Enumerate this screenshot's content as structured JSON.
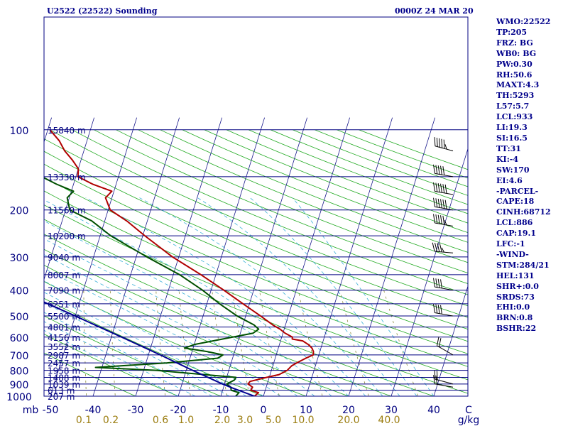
{
  "header": {
    "station_title": "U2522 (22522) Sounding",
    "time_title": "0000Z 24 MAR 20"
  },
  "indices": [
    "WMO:22522",
    "TP:205",
    "FRZ: BG",
    "WB0: BG",
    "PW:0.30",
    "RH:50.6",
    "MAXT:4.3",
    "TH:5293",
    "L57:5.7",
    "LCL:933",
    "LI:19.3",
    "SI:16.5",
    "TT:31",
    "KI:-4",
    "SW:170",
    "EI:4.6",
    "-PARCEL-",
    "CAPE:18",
    "CINH:68712",
    "LCL:886",
    "CAP:19.1",
    "LFC:-1",
    "-WIND-",
    "STM:284/21",
    "HEL:131",
    "SHR+:0.0",
    "SRDS:73",
    "EHI:0.0",
    "BRN:0.8",
    "BSHR:22"
  ],
  "chart_data": {
    "type": "line",
    "chart_kind": "skew-T log-P sounding",
    "pressure_axis": {
      "unit_label": "mb",
      "ticks": [
        100,
        200,
        300,
        400,
        500,
        600,
        700,
        800,
        900,
        1000
      ],
      "ylim": [
        1000,
        100
      ],
      "scale": "log"
    },
    "temperature_axis": {
      "ticks": [
        -50,
        -40,
        -30,
        -20,
        -10,
        0,
        10,
        20,
        30,
        40
      ],
      "unit_label": "C",
      "skewed": true
    },
    "mixing_ratio_axis": {
      "unit_label": "g/kg",
      "ticks": [
        "0.1",
        "0.2",
        "0.6",
        "1.0",
        "2.0",
        "3.0",
        "5.0",
        "10.0",
        "20.0",
        "40.0"
      ]
    },
    "height_labels": [
      {
        "p": 100,
        "label": "15840 m"
      },
      {
        "p": 150,
        "label": "13330 m"
      },
      {
        "p": 200,
        "label": "11560 m"
      },
      {
        "p": 250,
        "label": "10200 m"
      },
      {
        "p": 300,
        "label": "9040 m"
      },
      {
        "p": 350,
        "label": "8007 m"
      },
      {
        "p": 400,
        "label": "7090 m"
      },
      {
        "p": 450,
        "label": "6251 m"
      },
      {
        "p": 500,
        "label": "5500 m"
      },
      {
        "p": 550,
        "label": "4801 m"
      },
      {
        "p": 600,
        "label": "4156 m"
      },
      {
        "p": 650,
        "label": "3552 m"
      },
      {
        "p": 700,
        "label": "2987 m"
      },
      {
        "p": 750,
        "label": "2457 m"
      },
      {
        "p": 800,
        "label": "1958 m"
      },
      {
        "p": 850,
        "label": "1488 m"
      },
      {
        "p": 900,
        "label": "1039 m"
      },
      {
        "p": 950,
        "label": "613 m"
      },
      {
        "p": 1000,
        "label": "207 m"
      }
    ],
    "series": [
      {
        "role": "temperature",
        "color": "#b00000",
        "points": [
          [
            1000,
            -2.1
          ],
          [
            970,
            -1.4
          ],
          [
            950,
            -3.4
          ],
          [
            925,
            -3.2
          ],
          [
            900,
            -4.5
          ],
          [
            880,
            -4.2
          ],
          [
            850,
            -0.6
          ],
          [
            830,
            2.1
          ],
          [
            800,
            3.7
          ],
          [
            770,
            4.4
          ],
          [
            750,
            5.4
          ],
          [
            720,
            7.2
          ],
          [
            700,
            8.7
          ],
          [
            680,
            8.5
          ],
          [
            660,
            7.9
          ],
          [
            640,
            6.8
          ],
          [
            620,
            5.2
          ],
          [
            610,
            2.6
          ],
          [
            600,
            2.5
          ],
          [
            580,
            0.5
          ],
          [
            560,
            -1.0
          ],
          [
            540,
            -3.0
          ],
          [
            500,
            -6.5
          ],
          [
            450,
            -11.5
          ],
          [
            400,
            -17.0
          ],
          [
            350,
            -23.5
          ],
          [
            300,
            -31.5
          ],
          [
            250,
            -39.5
          ],
          [
            220,
            -44.8
          ],
          [
            200,
            -49.5
          ],
          [
            180,
            -51.5
          ],
          [
            170,
            -50.5
          ],
          [
            160,
            -55.5
          ],
          [
            150,
            -59.5
          ],
          [
            140,
            -60.0
          ],
          [
            130,
            -62.0
          ],
          [
            120,
            -64.5
          ],
          [
            110,
            -66.5
          ],
          [
            100,
            -69.5
          ]
        ]
      },
      {
        "role": "dewpoint",
        "color": "#005000",
        "points": [
          [
            1000,
            -6.5
          ],
          [
            970,
            -6.0
          ],
          [
            950,
            -8.0
          ],
          [
            925,
            -8.3
          ],
          [
            900,
            -9.5
          ],
          [
            870,
            -8.0
          ],
          [
            850,
            -7.8
          ],
          [
            800,
            -27.0
          ],
          [
            780,
            -41.5
          ],
          [
            750,
            -25.0
          ],
          [
            720,
            -13.5
          ],
          [
            700,
            -12.5
          ],
          [
            680,
            -16.5
          ],
          [
            660,
            -22.0
          ],
          [
            640,
            -20.0
          ],
          [
            600,
            -11.5
          ],
          [
            580,
            -7.0
          ],
          [
            560,
            -6.0
          ],
          [
            540,
            -7.4
          ],
          [
            500,
            -12.0
          ],
          [
            450,
            -17.0
          ],
          [
            400,
            -22.0
          ],
          [
            350,
            -28.5
          ],
          [
            300,
            -37.5
          ],
          [
            250,
            -47.5
          ],
          [
            220,
            -53.0
          ],
          [
            200,
            -59.0
          ],
          [
            180,
            -60.5
          ],
          [
            170,
            -59.5
          ],
          [
            160,
            -64.0
          ],
          [
            150,
            -68.0
          ],
          [
            140,
            -69.0
          ],
          [
            130,
            -71.0
          ],
          [
            120,
            -72.5
          ],
          [
            110,
            -74.0
          ],
          [
            100,
            -77.0
          ]
        ]
      },
      {
        "role": "parcel",
        "color": "#000090",
        "points": [
          [
            1000,
            -2.1
          ],
          [
            930,
            -8.0
          ],
          [
            900,
            -10.5
          ],
          [
            800,
            -18.5
          ],
          [
            700,
            -27.2
          ],
          [
            600,
            -37.6
          ],
          [
            500,
            -50.0
          ],
          [
            400,
            -65.5
          ],
          [
            300,
            -84.5
          ],
          [
            200,
            -108.0
          ],
          [
            130,
            -128.0
          ]
        ]
      }
    ],
    "wind_barbs": [
      {
        "p": 120,
        "dir": 285,
        "speed_kt": 55
      },
      {
        "p": 150,
        "dir": 280,
        "speed_kt": 50
      },
      {
        "p": 175,
        "dir": 280,
        "speed_kt": 60
      },
      {
        "p": 200,
        "dir": 280,
        "speed_kt": 60
      },
      {
        "p": 230,
        "dir": 280,
        "speed_kt": 55
      },
      {
        "p": 290,
        "dir": 275,
        "speed_kt": 45
      },
      {
        "p": 400,
        "dir": 280,
        "speed_kt": 40
      },
      {
        "p": 500,
        "dir": 280,
        "speed_kt": 40
      },
      {
        "p": 700,
        "dir": 300,
        "speed_kt": 20
      },
      {
        "p": 900,
        "dir": 285,
        "speed_kt": 20
      },
      {
        "p": 925,
        "dir": 280,
        "speed_kt": 20
      }
    ]
  }
}
